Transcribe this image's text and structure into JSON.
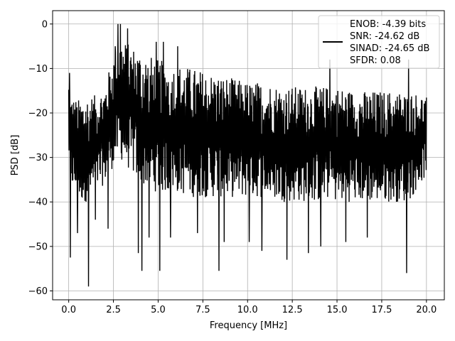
{
  "chart_data": {
    "type": "line",
    "title": "",
    "xlabel": "Frequency [MHz]",
    "ylabel": "PSD [dB]",
    "xlim": [
      -0.9,
      21.0
    ],
    "ylim": [
      -62,
      3
    ],
    "xticks": [
      0.0,
      2.5,
      5.0,
      7.5,
      10.0,
      12.5,
      15.0,
      17.5,
      20.0
    ],
    "xtick_labels": [
      "0.0",
      "2.5",
      "5.0",
      "7.5",
      "10.0",
      "12.5",
      "15.0",
      "17.5",
      "20.0"
    ],
    "yticks": [
      0,
      -10,
      -20,
      -30,
      -40,
      -50,
      -60
    ],
    "ytick_labels": [
      "0",
      "−10",
      "−20",
      "−30",
      "−40",
      "−50",
      "−60"
    ],
    "grid": true,
    "legend_position": "top-right",
    "series_color": "#000000",
    "legend": {
      "lines": [
        "ENOB: -4.39 bits",
        "SNR: -24.62 dB",
        "SINAD: -24.65 dB",
        "SFDR: 0.08"
      ]
    },
    "series": [
      {
        "x_range": [
          0.0,
          20.0
        ],
        "envelope": {
          "x": [
            0.0,
            0.1,
            0.5,
            1.0,
            1.5,
            2.0,
            2.5,
            2.8,
            3.2,
            4.0,
            5.0,
            6.0,
            7.0,
            8.0,
            9.0,
            10.0,
            11.0,
            12.0,
            13.0,
            14.0,
            15.0,
            16.0,
            17.0,
            18.0,
            19.0,
            20.0
          ],
          "upper": [
            -12,
            -16,
            -17,
            -16,
            -16,
            -14,
            -7,
            -3,
            -4,
            -6,
            -8,
            -9,
            -10,
            -11,
            -12,
            -13,
            -13,
            -14,
            -14,
            -14,
            -14,
            -15,
            -15,
            -15,
            -15,
            -16
          ],
          "lower": [
            -30,
            -36,
            -40,
            -40,
            -38,
            -36,
            -32,
            -30,
            -32,
            -36,
            -38,
            -38,
            -39,
            -39,
            -39,
            -39,
            -39,
            -40,
            -40,
            -40,
            -40,
            -40,
            -40,
            -40,
            -40,
            -34
          ]
        },
        "peaks": [
          {
            "x": 0.05,
            "y": -11
          },
          {
            "x": 2.6,
            "y": -5
          },
          {
            "x": 2.75,
            "y": 0
          },
          {
            "x": 2.9,
            "y": 0
          },
          {
            "x": 3.3,
            "y": -1
          },
          {
            "x": 4.9,
            "y": -4
          },
          {
            "x": 5.3,
            "y": -4
          },
          {
            "x": 6.1,
            "y": -5
          },
          {
            "x": 14.6,
            "y": -8
          },
          {
            "x": 19.0,
            "y": -8
          }
        ],
        "dips": [
          {
            "x": 0.1,
            "y": -52.5
          },
          {
            "x": 0.5,
            "y": -47
          },
          {
            "x": 1.1,
            "y": -59
          },
          {
            "x": 1.5,
            "y": -44
          },
          {
            "x": 2.2,
            "y": -46
          },
          {
            "x": 3.9,
            "y": -51.5
          },
          {
            "x": 4.1,
            "y": -55.5
          },
          {
            "x": 4.5,
            "y": -48
          },
          {
            "x": 5.1,
            "y": -55.5
          },
          {
            "x": 5.7,
            "y": -48
          },
          {
            "x": 7.2,
            "y": -47
          },
          {
            "x": 8.4,
            "y": -55.5
          },
          {
            "x": 8.7,
            "y": -49
          },
          {
            "x": 10.1,
            "y": -49
          },
          {
            "x": 10.8,
            "y": -51
          },
          {
            "x": 12.2,
            "y": -53
          },
          {
            "x": 13.4,
            "y": -51.5
          },
          {
            "x": 14.1,
            "y": -50
          },
          {
            "x": 15.5,
            "y": -49
          },
          {
            "x": 16.7,
            "y": -48
          },
          {
            "x": 18.9,
            "y": -56
          }
        ]
      }
    ]
  }
}
